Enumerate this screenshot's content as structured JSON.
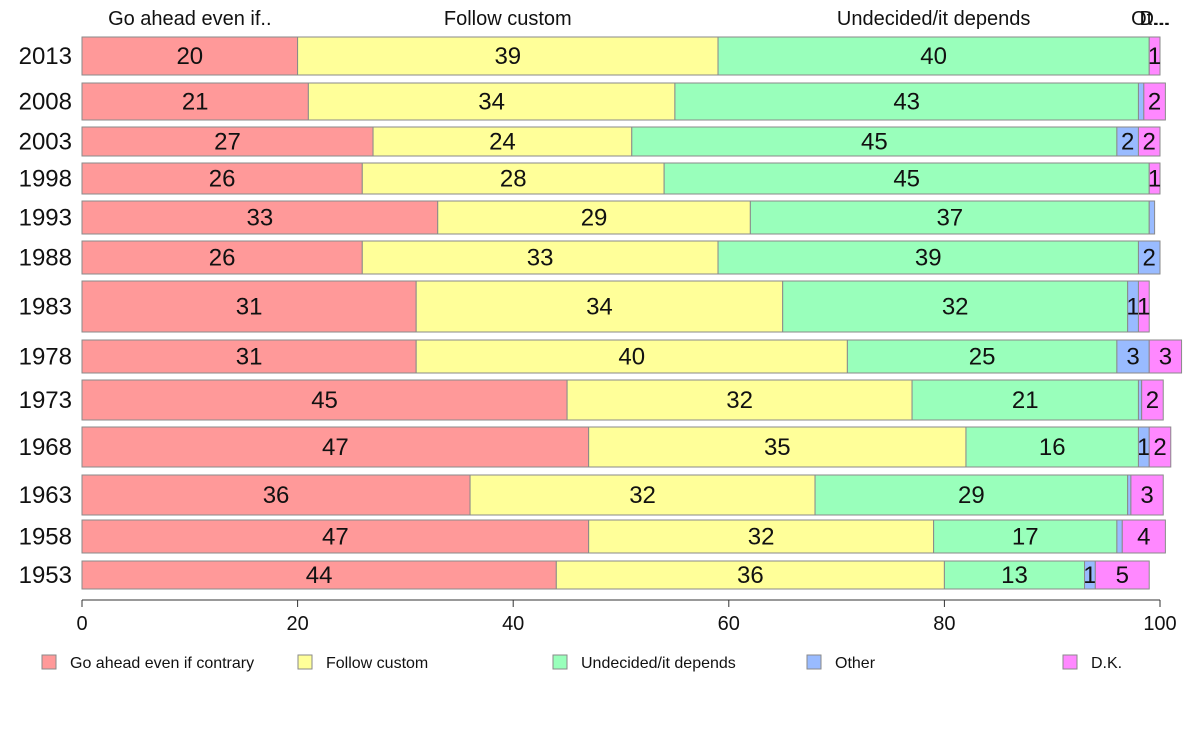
{
  "chart_data": {
    "type": "bar",
    "orientation": "horizontal-stacked-percent",
    "xlim": [
      0,
      100
    ],
    "x_ticks": [
      0,
      20,
      40,
      60,
      80,
      100
    ],
    "categories": [
      "2013",
      "2008",
      "2003",
      "1998",
      "1993",
      "1988",
      "1983",
      "1978",
      "1973",
      "1968",
      "1963",
      "1958",
      "1953"
    ],
    "series": [
      {
        "name": "Go ahead even if contrary",
        "color": "#ff9999",
        "values": [
          20,
          21,
          27,
          26,
          33,
          26,
          31,
          31,
          45,
          47,
          36,
          47,
          44
        ]
      },
      {
        "name": "Follow custom",
        "color": "#ffff99",
        "values": [
          39,
          34,
          24,
          28,
          29,
          33,
          34,
          40,
          32,
          35,
          32,
          32,
          36
        ]
      },
      {
        "name": "Undecided/it depends",
        "color": "#99ffbb",
        "values": [
          40,
          43,
          45,
          45,
          37,
          39,
          32,
          25,
          21,
          16,
          29,
          17,
          13
        ]
      },
      {
        "name": "Other",
        "color": "#99bbff",
        "values": [
          0,
          0.5,
          2,
          0,
          0.5,
          2,
          1,
          3,
          0.3,
          1,
          0.3,
          0.5,
          1
        ]
      },
      {
        "name": "D.K.",
        "color": "#ff88ff",
        "values": [
          1,
          2,
          2,
          1,
          0,
          0,
          1,
          3,
          2,
          2,
          3,
          4,
          5
        ]
      }
    ],
    "data_labels": [
      [
        "20",
        "39",
        "40",
        "",
        "1"
      ],
      [
        "21",
        "34",
        "43",
        "",
        "2"
      ],
      [
        "27",
        "24",
        "45",
        "2",
        "2"
      ],
      [
        "26",
        "28",
        "45",
        "",
        "1"
      ],
      [
        "33",
        "29",
        "37",
        "",
        ""
      ],
      [
        "26",
        "33",
        "39",
        "2",
        ""
      ],
      [
        "31",
        "34",
        "32",
        "1",
        "1"
      ],
      [
        "31",
        "40",
        "25",
        "3",
        "3"
      ],
      [
        "45",
        "32",
        "21",
        "",
        "2"
      ],
      [
        "47",
        "35",
        "16",
        "1",
        "2"
      ],
      [
        "36",
        "32",
        "29",
        "",
        "3"
      ],
      [
        "47",
        "32",
        "17",
        "",
        "4"
      ],
      [
        "44",
        "36",
        "13",
        "1",
        "5"
      ]
    ],
    "top_labels": [
      "Go ahead even if..",
      "Follow custom",
      "Undecided/it depends",
      "Ot...",
      "D..."
    ],
    "legend": [
      "Go ahead even if contrary",
      "Follow custom",
      "Undecided/it depends",
      "Other",
      "D.K."
    ],
    "legend_position": "bottom"
  }
}
